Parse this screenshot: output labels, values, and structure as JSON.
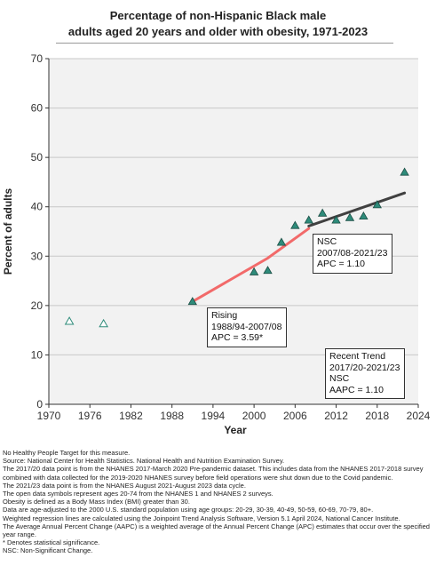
{
  "title_line1": "Percentage of non-Hispanic Black male",
  "title_line2": "adults aged 20 years and older with obesity, 1971-2023",
  "chart_data": {
    "type": "scatter",
    "xlabel": "Year",
    "ylabel": "Percent of adults",
    "xlim": [
      1970,
      2024
    ],
    "ylim": [
      0,
      70
    ],
    "x_ticks": [
      1970,
      1976,
      1982,
      1988,
      1994,
      2000,
      2006,
      2012,
      2018,
      2024
    ],
    "y_ticks": [
      0,
      10,
      20,
      30,
      40,
      50,
      60,
      70
    ],
    "grid": "horizontal",
    "series": [
      {
        "marker": "open-triangle",
        "points": [
          {
            "x": 1973,
            "y": 16.8
          },
          {
            "x": 1978,
            "y": 16.3
          }
        ]
      },
      {
        "marker": "filled-triangle",
        "points": [
          {
            "x": 1991,
            "y": 20.8
          },
          {
            "x": 2000,
            "y": 26.8
          },
          {
            "x": 2002,
            "y": 27.1
          },
          {
            "x": 2004,
            "y": 32.8
          },
          {
            "x": 2006,
            "y": 36.2
          },
          {
            "x": 2008,
            "y": 37.3
          },
          {
            "x": 2010,
            "y": 38.7
          },
          {
            "x": 2012,
            "y": 37.3
          },
          {
            "x": 2014,
            "y": 37.8
          },
          {
            "x": 2016,
            "y": 38.1
          },
          {
            "x": 2018,
            "y": 40.4
          },
          {
            "x": 2022,
            "y": 47.0
          }
        ]
      }
    ],
    "trend_lines": [
      {
        "color": "#f26a6a",
        "points": [
          {
            "x": 1991,
            "y": 20.8
          },
          {
            "x": 2002,
            "y": 29.6
          },
          {
            "x": 2008,
            "y": 35.6
          }
        ]
      },
      {
        "color": "#404040",
        "points": [
          {
            "x": 2008,
            "y": 36.1
          },
          {
            "x": 2022,
            "y": 42.8
          }
        ]
      }
    ],
    "annotations": [
      {
        "lines": [
          "Rising",
          "1988/94-2007/08",
          "APC =  3.59*"
        ]
      },
      {
        "lines": [
          "NSC",
          "2007/08-2021/23",
          "APC =  1.10"
        ]
      },
      {
        "lines": [
          "Recent Trend",
          "2017/20-2021/23",
          "NSC",
          "AAPC =  1.10"
        ]
      }
    ],
    "colors": {
      "marker_fill": "#2e8b7a",
      "marker_stroke": "#1b4d44",
      "open_marker": "#2e8b7a",
      "rising_line": "#f26a6a",
      "nsc_line": "#404040",
      "plot_bg": "#f2f2f2",
      "grid": "#c8c8c8"
    }
  },
  "notes": [
    "No Healthy People Target for this measure.",
    "Source: National Center for Health Statistics. National Health and Nutrition Examination Survey.",
    "The 2017/20 data point is from the NHANES 2017-March 2020 Pre-pandemic dataset. This includes data from the NHANES 2017-2018 survey combined with data collected for the 2019-2020 NHANES survey before field operations were shut down due to the Covid pandemic.",
    "The 2021/23 data point is from the NHANES August 2021-August 2023 data cycle.",
    "The open data symbols represent ages 20-74 from the NHANES 1 and NHANES 2 surveys.",
    "Obesity is defined as a Body Mass Index (BMI) greater than 30.",
    "Data are age-adjusted to the 2000 U.S. standard population using age groups: 20-29, 30-39, 40-49, 50-59, 60-69, 70-79, 80+.",
    "Weighted regression lines are calculated using the Joinpoint Trend Analysis Software, Version 5.1 April 2024, National Cancer Institute.",
    "The Average Annual Percent Change (AAPC) is a weighted average of the Annual Percent Change (APC) estimates that occur over the specified year range.",
    "* Denotes statistical significance.",
    "NSC: Non-Significant Change."
  ]
}
